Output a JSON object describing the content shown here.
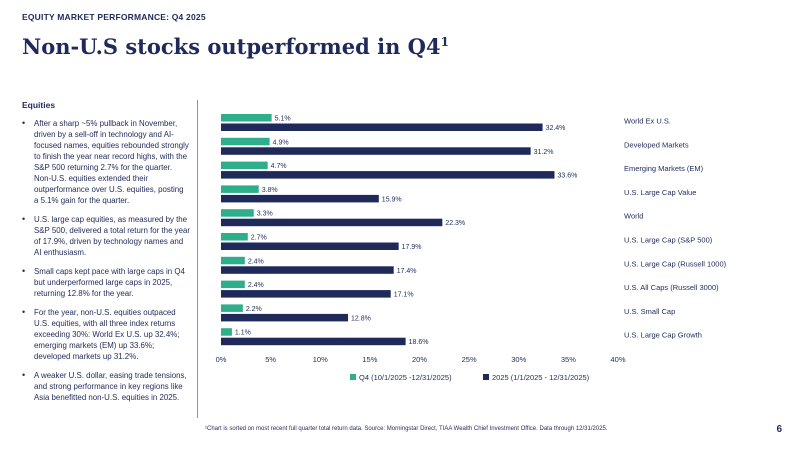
{
  "header": {
    "eyebrow": "EQUITY MARKET PERFORMANCE: Q4 2025",
    "title": "Non-U.S stocks outperformed in Q4",
    "title_sup": "1"
  },
  "sidebar": {
    "heading": "Equities",
    "bullets": [
      "After a sharp ~5% pullback in November, driven by a sell-off in technology and AI-focused names, equities rebounded strongly to finish the year near record highs, with the S&P 500 returning 2.7% for the quarter. Non-U.S. equities extended their outperformance over U.S. equities, posting a 5.1% gain for the quarter.",
      "U.S. large cap equities, as measured by the S&P 500, delivered a total return for the year of 17.9%, driven by technology names and AI enthusiasm.",
      "Small caps kept pace with large caps in Q4 but underperformed large caps in 2025, returning 12.8% for the year.",
      "For the year, non-U.S. equities outpaced U.S. equities, with all three index returns exceeding 30%: World Ex U.S. up 32.4%; emerging markets (EM) up 33.6%; developed markets up 31.2%.",
      "A weaker U.S. dollar, easing trade tensions, and strong performance in key regions like Asia benefitted non-U.S. equities in 2025."
    ]
  },
  "footer": {
    "footnote": "¹Chart is sorted on most recent full quarter total return data. Source: Morningstar Direct, TIAA Wealth Chief Investment Office. Data through 12/31/2025.",
    "page_number": "6"
  },
  "chart_data": {
    "type": "bar",
    "orientation": "horizontal",
    "categories": [
      "World Ex U.S.",
      "Developed Markets",
      "Emerging Markets (EM)",
      "U.S. Large Cap Value",
      "World",
      "U.S. Large Cap (S&P 500)",
      "U.S. Large Cap (Russell 1000)",
      "U.S. All Caps (Russell 3000)",
      "U.S. Small Cap",
      "U.S. Large Cap Growth"
    ],
    "series": [
      {
        "name": "Q4 (10/1/2025 -12/31/2025)",
        "values": [
          5.1,
          4.9,
          4.7,
          3.8,
          3.3,
          2.7,
          2.4,
          2.4,
          2.2,
          1.1
        ],
        "color": "#2fae8c"
      },
      {
        "name": "2025 (1/1/2025 - 12/31/2025)",
        "values": [
          32.4,
          31.2,
          33.6,
          15.9,
          22.3,
          17.9,
          17.4,
          17.1,
          12.8,
          18.6
        ],
        "color": "#1f2a5a"
      }
    ],
    "value_suffix": "%",
    "xlim": [
      0,
      40
    ],
    "xticks": [
      "0%",
      "5%",
      "10%",
      "15%",
      "20%",
      "25%",
      "30%",
      "35%",
      "40%"
    ],
    "legend_position": "bottom",
    "grid": false
  }
}
